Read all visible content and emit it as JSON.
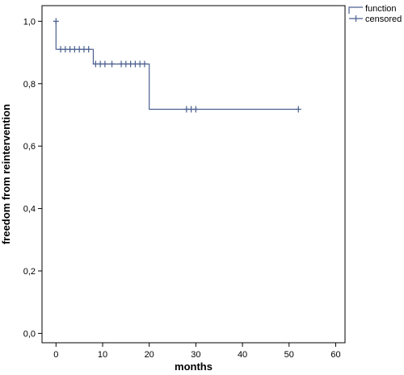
{
  "chart_data": {
    "type": "line",
    "title": "",
    "xlabel": "months",
    "ylabel": "freedom from reintervention",
    "xlim": [
      -3,
      62
    ],
    "ylim": [
      -0.03,
      1.05
    ],
    "x_ticks": [
      0,
      10,
      20,
      30,
      40,
      50,
      60
    ],
    "x_tick_labels": [
      "0",
      "10",
      "20",
      "30",
      "40",
      "50",
      "60"
    ],
    "y_ticks": [
      0.0,
      0.2,
      0.4,
      0.6,
      0.8,
      1.0
    ],
    "y_tick_labels": [
      "0,0",
      "0,2",
      "0,4",
      "0,6",
      "0,8",
      "1,0"
    ],
    "grid": false,
    "legend": {
      "placement": "top-right",
      "entries": [
        {
          "label": "function",
          "marker": "step-line"
        },
        {
          "label": "censored",
          "marker": "plus"
        }
      ]
    },
    "series": [
      {
        "name": "function",
        "color": "#4a5f8f",
        "step_x": [
          0,
          0,
          8,
          20,
          52
        ],
        "step_y": [
          1.0,
          0.91,
          0.863,
          0.718,
          0.718
        ],
        "censored": [
          {
            "x": 0,
            "y": 1.0
          },
          {
            "x": 1,
            "y": 0.91
          },
          {
            "x": 2,
            "y": 0.91
          },
          {
            "x": 3,
            "y": 0.91
          },
          {
            "x": 4,
            "y": 0.91
          },
          {
            "x": 5,
            "y": 0.91
          },
          {
            "x": 6,
            "y": 0.91
          },
          {
            "x": 7,
            "y": 0.91
          },
          {
            "x": 8.5,
            "y": 0.863
          },
          {
            "x": 9.5,
            "y": 0.863
          },
          {
            "x": 10.5,
            "y": 0.863
          },
          {
            "x": 12,
            "y": 0.863
          },
          {
            "x": 14,
            "y": 0.863
          },
          {
            "x": 15,
            "y": 0.863
          },
          {
            "x": 16,
            "y": 0.863
          },
          {
            "x": 17,
            "y": 0.863
          },
          {
            "x": 18,
            "y": 0.863
          },
          {
            "x": 19,
            "y": 0.863
          },
          {
            "x": 28,
            "y": 0.718
          },
          {
            "x": 29,
            "y": 0.718
          },
          {
            "x": 30,
            "y": 0.718
          },
          {
            "x": 52,
            "y": 0.718
          }
        ]
      }
    ]
  }
}
